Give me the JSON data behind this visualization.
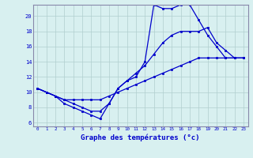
{
  "xlabel": "Graphe des températures (°c)",
  "background_color": "#d8f0f0",
  "line_color": "#0000cc",
  "grid_color": "#b0cece",
  "spine_color": "#8888aa",
  "xlim": [
    -0.5,
    23.5
  ],
  "ylim": [
    5.5,
    21.5
  ],
  "xticks": [
    0,
    1,
    2,
    3,
    4,
    5,
    6,
    7,
    8,
    9,
    10,
    11,
    12,
    13,
    14,
    15,
    16,
    17,
    18,
    19,
    20,
    21,
    22,
    23
  ],
  "yticks": [
    6,
    8,
    10,
    12,
    14,
    16,
    18,
    20
  ],
  "series1_x": [
    0,
    1,
    2,
    3,
    4,
    5,
    6,
    7,
    8,
    9,
    10,
    11,
    12,
    13,
    14,
    15,
    16,
    17,
    18,
    19,
    20,
    21,
    22,
    23
  ],
  "series1_y": [
    10.5,
    10.0,
    9.5,
    8.5,
    8.0,
    7.5,
    7.0,
    6.5,
    8.5,
    10.5,
    11.5,
    12.0,
    14.0,
    21.5,
    21.0,
    21.0,
    21.5,
    21.5,
    19.5,
    17.5,
    16.0,
    14.5,
    14.5,
    14.5
  ],
  "series2_x": [
    0,
    1,
    2,
    3,
    4,
    5,
    6,
    7,
    8,
    9,
    10,
    11,
    12,
    13,
    14,
    15,
    16,
    17,
    18,
    19,
    20,
    21,
    22,
    23
  ],
  "series2_y": [
    10.5,
    10.0,
    9.5,
    9.0,
    8.5,
    8.0,
    7.5,
    7.5,
    8.5,
    10.5,
    11.5,
    12.5,
    13.5,
    15.0,
    16.5,
    17.5,
    18.0,
    18.0,
    18.0,
    18.5,
    16.5,
    15.5,
    14.5,
    14.5
  ],
  "series3_x": [
    0,
    1,
    2,
    3,
    4,
    5,
    6,
    7,
    8,
    9,
    10,
    11,
    12,
    13,
    14,
    15,
    16,
    17,
    18,
    19,
    20,
    21,
    22,
    23
  ],
  "series3_y": [
    10.5,
    10.0,
    9.5,
    9.0,
    9.0,
    9.0,
    9.0,
    9.0,
    9.5,
    10.0,
    10.5,
    11.0,
    11.5,
    12.0,
    12.5,
    13.0,
    13.5,
    14.0,
    14.5,
    14.5,
    14.5,
    14.5,
    14.5,
    14.5
  ]
}
